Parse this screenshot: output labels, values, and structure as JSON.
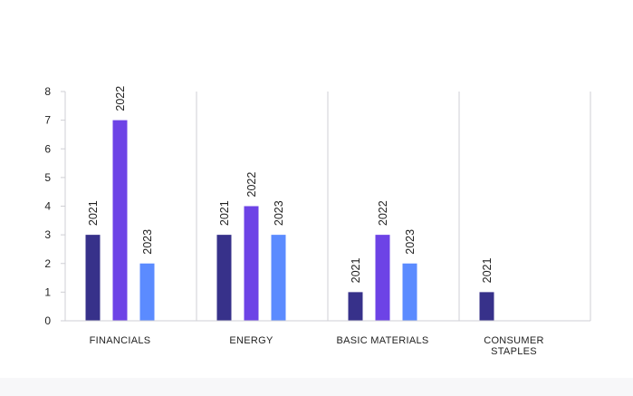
{
  "chart_data": {
    "type": "bar",
    "title": "",
    "xlabel": "",
    "ylabel": "",
    "ylim": [
      0,
      8
    ],
    "yticks": [
      0,
      1,
      2,
      3,
      4,
      5,
      6,
      7,
      8
    ],
    "grid": "vertical separators between categories",
    "categories": [
      {
        "lines": [
          "FINANCIALS"
        ]
      },
      {
        "lines": [
          "ENERGY"
        ]
      },
      {
        "lines": [
          "BASIC MATERIALS"
        ]
      },
      {
        "lines": [
          "CONSUMER",
          "STAPLES"
        ]
      }
    ],
    "series": [
      {
        "name": "2021",
        "color": "#37318a",
        "values": [
          3,
          3,
          1,
          1
        ]
      },
      {
        "name": "2022",
        "color": "#6d43e6",
        "values": [
          7,
          4,
          3,
          null
        ]
      },
      {
        "name": "2023",
        "color": "#5b8bff",
        "values": [
          2,
          3,
          2,
          null
        ]
      }
    ],
    "axis_color": "#cfcfd4"
  }
}
